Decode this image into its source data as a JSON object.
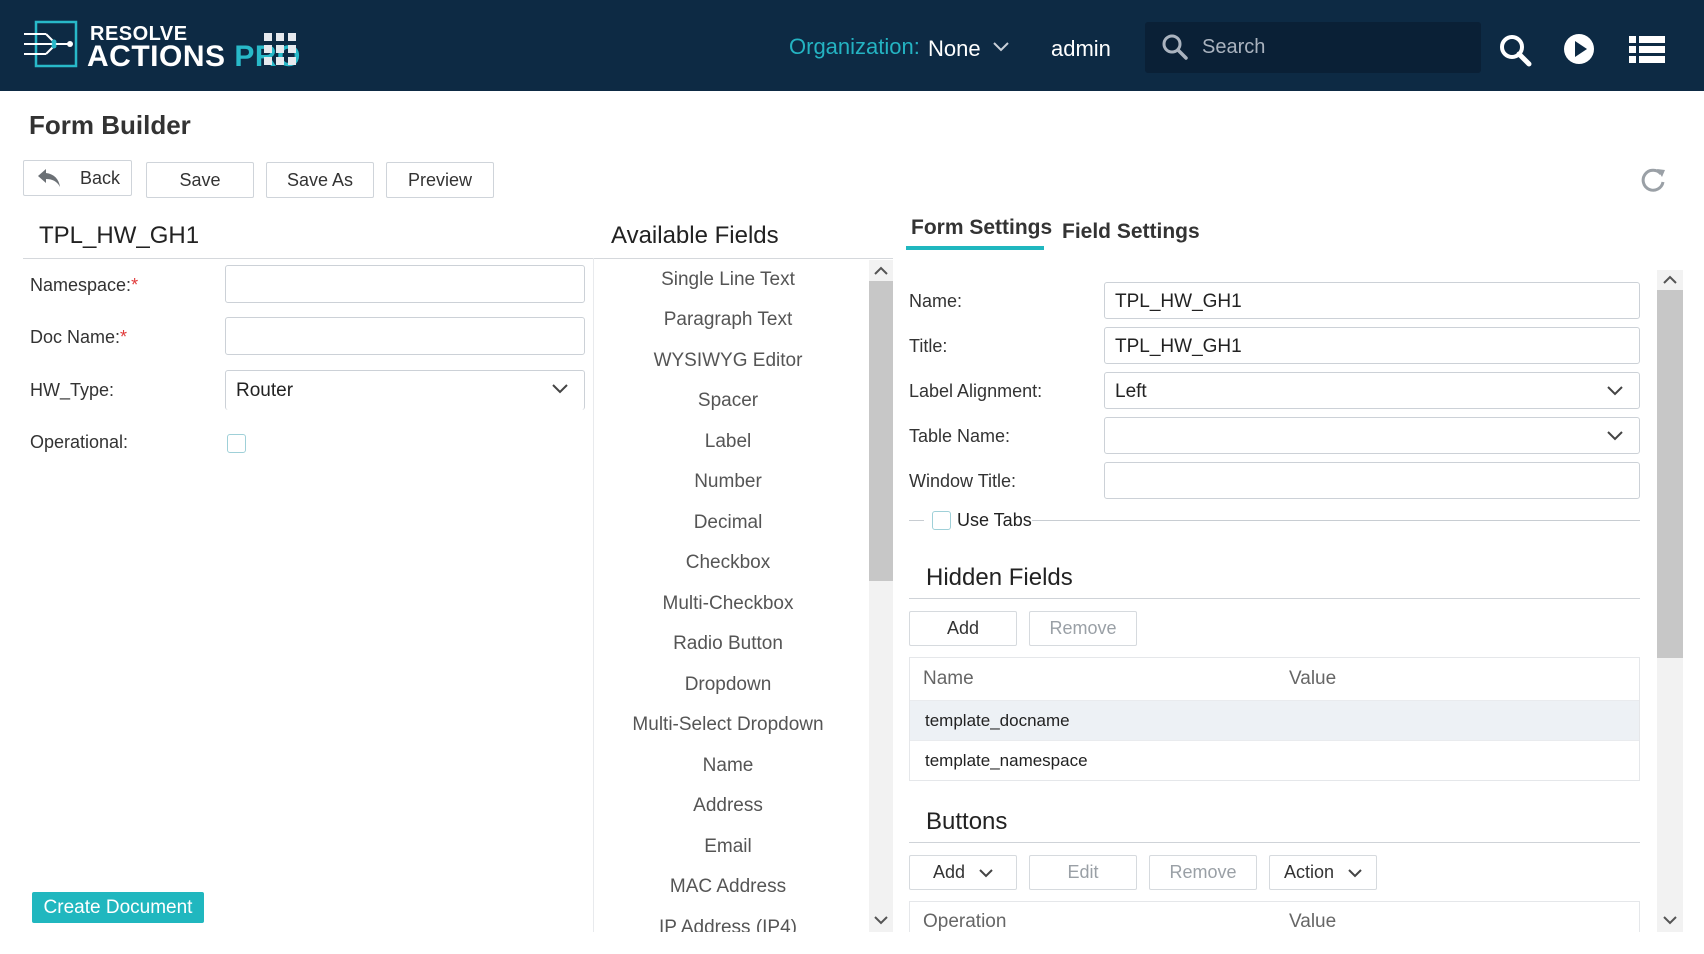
{
  "brand": {
    "line1": "RESOLVE",
    "line2": "ACTIONS",
    "line2_accent": "PRO",
    "accent_color": "#28b9c9",
    "bar_color": "#0d2a44"
  },
  "topnav": {
    "org_label": "Organization:",
    "org_value": "None",
    "username": "admin",
    "search_placeholder": "Search",
    "icons": [
      "apps-grid-icon",
      "chevron-down-icon",
      "search-icon",
      "play-icon",
      "list-icon"
    ]
  },
  "page": {
    "title": "Form Builder"
  },
  "toolbar": {
    "back_label": "Back",
    "save_label": "Save",
    "save_as_label": "Save As",
    "preview_label": "Preview"
  },
  "form": {
    "name": "TPL_HW_GH1",
    "fields": {
      "namespace_label": "Namespace:",
      "docname_label": "Doc Name:",
      "hwtype_label": "HW_Type:",
      "hwtype_value": "Router",
      "operational_label": "Operational:",
      "required_mark": "*"
    },
    "create_label": "Create Document"
  },
  "available": {
    "title": "Available Fields",
    "items": [
      "Single Line Text",
      "Paragraph Text",
      "WYSIWYG Editor",
      "Spacer",
      "Label",
      "Number",
      "Decimal",
      "Checkbox",
      "Multi-Checkbox",
      "Radio Button",
      "Dropdown",
      "Multi-Select Dropdown",
      "Name",
      "Address",
      "Email",
      "MAC Address",
      "IP Address (IP4)"
    ]
  },
  "settings": {
    "tabs": {
      "form": "Form Settings",
      "field": "Field Settings"
    },
    "name_label": "Name:",
    "name_value": "TPL_HW_GH1",
    "title_label": "Title:",
    "title_value": "TPL_HW_GH1",
    "label_alignment_label": "Label Alignment:",
    "label_alignment_value": "Left",
    "table_name_label": "Table Name:",
    "table_name_value": "",
    "window_title_label": "Window Title:",
    "window_title_value": "",
    "use_tabs_label": "Use Tabs",
    "hidden_fields": {
      "title": "Hidden Fields",
      "add_label": "Add",
      "remove_label": "Remove",
      "col_name": "Name",
      "col_value": "Value",
      "rows": [
        {
          "name": "template_docname",
          "value": ""
        },
        {
          "name": "template_namespace",
          "value": ""
        }
      ]
    },
    "buttons": {
      "title": "Buttons",
      "add_label": "Add",
      "edit_label": "Edit",
      "remove_label": "Remove",
      "action_label": "Action",
      "col_operation": "Operation",
      "col_value": "Value"
    }
  }
}
